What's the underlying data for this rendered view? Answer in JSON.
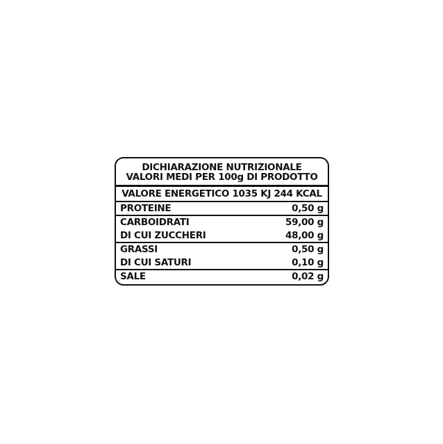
{
  "label": {
    "title": "DICHIARAZIONE NUTRIZIONALE",
    "subtitle": "VALORI MEDI PER 100g DI PRODOTTO",
    "energy": "VALORE ENERGETICO 1035 KJ 244 KCAL",
    "rows": [
      {
        "name": "PROTEINE",
        "value": "0,50 g"
      },
      {
        "name": "CARBOIDRATI",
        "value": "59,00 g"
      },
      {
        "name": "DI CUI ZUCCHERI",
        "value": "48,00 g"
      },
      {
        "name": "GRASSI",
        "value": "0,50 g"
      },
      {
        "name": "DI CUI SATURI",
        "value": "0,10 g"
      },
      {
        "name": "SALE",
        "value": "0,02 g"
      }
    ]
  }
}
